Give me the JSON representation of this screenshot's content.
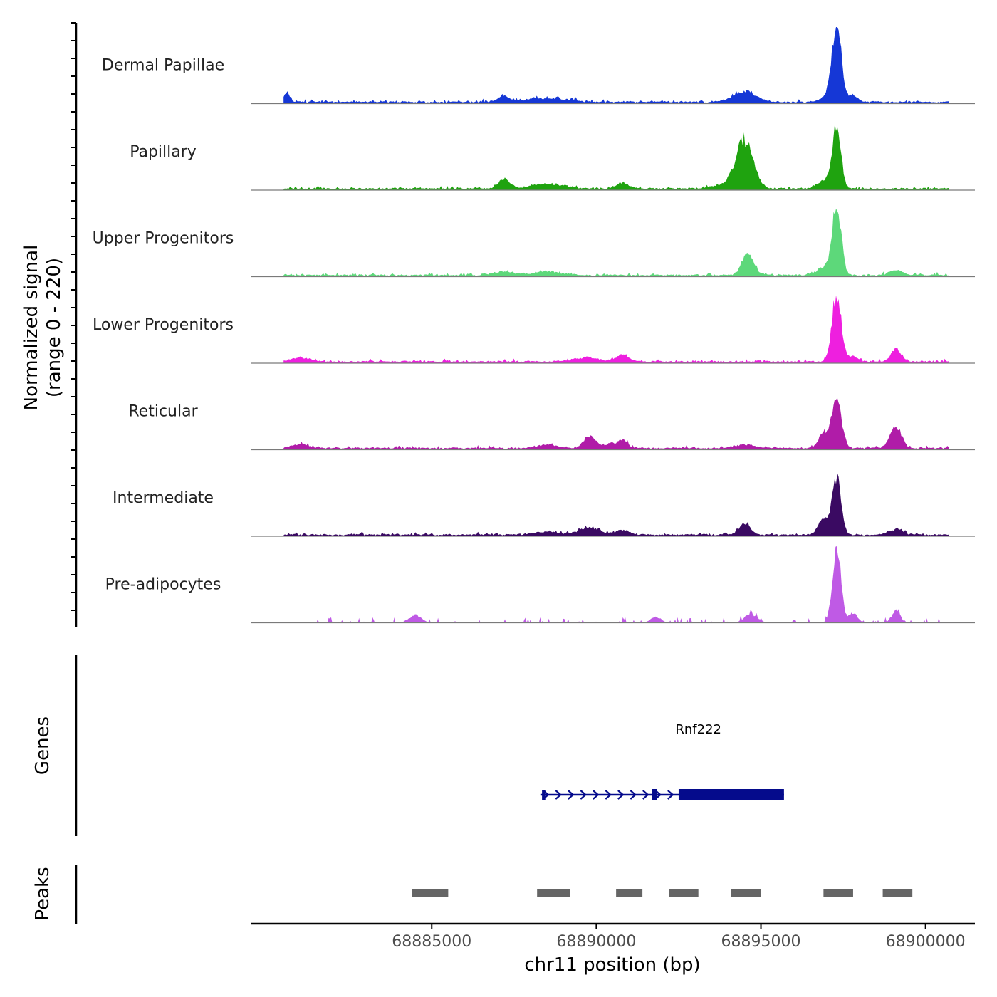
{
  "chart_data": {
    "type": "area",
    "title": "",
    "ylabel_line1": "Normalized signal",
    "ylabel_line2": "(range 0 - 220)",
    "y_range": [
      0,
      220
    ],
    "xlabel": "chr11 position (bp)",
    "chromosome": "chr11",
    "x_range": [
      68879500,
      68901500
    ],
    "x_ticks": [
      68885000,
      68890000,
      68895000,
      68900000
    ],
    "x_tick_labels": [
      "68885000",
      "68890000",
      "68895000",
      "68900000"
    ],
    "tracks": [
      {
        "name": "Dermal Papillae",
        "color": "#1537d6",
        "start": 68880500,
        "end": 68900700,
        "baseline": 4,
        "noise": 6,
        "seed": 11,
        "peaks": [
          [
            68897300,
            210,
            140
          ],
          [
            68894500,
            30,
            350
          ],
          [
            68880600,
            28,
            90
          ],
          [
            68887200,
            16,
            180
          ],
          [
            68888500,
            10,
            600
          ],
          [
            68897800,
            20,
            150
          ],
          [
            68897050,
            18,
            200
          ]
        ]
      },
      {
        "name": "Papillary",
        "color": "#1fa30f",
        "start": 68880500,
        "end": 68900700,
        "baseline": 4,
        "noise": 5,
        "seed": 23,
        "peaks": [
          [
            68894500,
            140,
            260
          ],
          [
            68897300,
            175,
            130
          ],
          [
            68887200,
            28,
            160
          ],
          [
            68888500,
            14,
            500
          ],
          [
            68890800,
            16,
            200
          ],
          [
            68896900,
            22,
            200
          ],
          [
            68893800,
            8,
            400
          ]
        ]
      },
      {
        "name": "Upper Progenitors",
        "color": "#5dd87a",
        "start": 68880500,
        "end": 68900700,
        "baseline": 4,
        "noise": 5,
        "seed": 37,
        "peaks": [
          [
            68897300,
            190,
            140
          ],
          [
            68894600,
            62,
            180
          ],
          [
            68896900,
            20,
            200
          ],
          [
            68899100,
            14,
            200
          ],
          [
            68887200,
            10,
            300
          ],
          [
            68888500,
            10,
            400
          ]
        ]
      },
      {
        "name": "Lower Progenitors",
        "color": "#ee1fdf",
        "start": 68880500,
        "end": 68900700,
        "baseline": 4,
        "noise": 5,
        "seed": 41,
        "peaks": [
          [
            68897300,
            190,
            140
          ],
          [
            68899100,
            38,
            160
          ],
          [
            68890800,
            18,
            200
          ],
          [
            68889700,
            12,
            400
          ],
          [
            68881000,
            10,
            300
          ],
          [
            68897800,
            16,
            150
          ]
        ]
      },
      {
        "name": "Reticular",
        "color": "#b01ca8",
        "start": 68880500,
        "end": 68900700,
        "baseline": 4,
        "noise": 5,
        "seed": 53,
        "peaks": [
          [
            68897300,
            130,
            150
          ],
          [
            68896900,
            40,
            150
          ],
          [
            68899100,
            62,
            170
          ],
          [
            68889800,
            36,
            180
          ],
          [
            68890800,
            26,
            150
          ],
          [
            68890400,
            14,
            150
          ],
          [
            68888500,
            10,
            300
          ],
          [
            68894500,
            10,
            300
          ],
          [
            68881000,
            10,
            300
          ]
        ]
      },
      {
        "name": "Intermediate",
        "color": "#3a0a62",
        "start": 68880500,
        "end": 68900700,
        "baseline": 4,
        "noise": 5,
        "seed": 67,
        "peaks": [
          [
            68897300,
            165,
            130
          ],
          [
            68896900,
            48,
            150
          ],
          [
            68894500,
            34,
            170
          ],
          [
            68889800,
            20,
            300
          ],
          [
            68890800,
            14,
            200
          ],
          [
            68899100,
            16,
            200
          ],
          [
            68888500,
            8,
            400
          ]
        ]
      },
      {
        "name": "Pre-adipocytes",
        "color": "#bf5ae5",
        "start": 68881500,
        "end": 68900700,
        "baseline": 0,
        "noise": 10,
        "seed": 79,
        "sparse": true,
        "peaks": [
          [
            68897300,
            215,
            130
          ],
          [
            68899100,
            34,
            130
          ],
          [
            68897800,
            28,
            130
          ],
          [
            68884500,
            22,
            180
          ],
          [
            68894700,
            24,
            200
          ],
          [
            68891800,
            18,
            150
          ]
        ]
      }
    ],
    "genes": [
      {
        "name": "Rnf222",
        "strand": "+",
        "start": 68888300,
        "end": 68895700,
        "exons": [
          [
            68888350,
            68888450
          ],
          [
            68891700,
            68891850
          ],
          [
            68892500,
            68895700
          ]
        ],
        "color": "#050b8c"
      }
    ],
    "gene_track_label": "Genes",
    "peaks_track_label": "Peaks",
    "peak_color": "#656565",
    "peaks": [
      [
        68884400,
        68885500
      ],
      [
        68888200,
        68889200
      ],
      [
        68890600,
        68891400
      ],
      [
        68892200,
        68893100
      ],
      [
        68894100,
        68895000
      ],
      [
        68896900,
        68897800
      ],
      [
        68898700,
        68899600
      ]
    ]
  }
}
